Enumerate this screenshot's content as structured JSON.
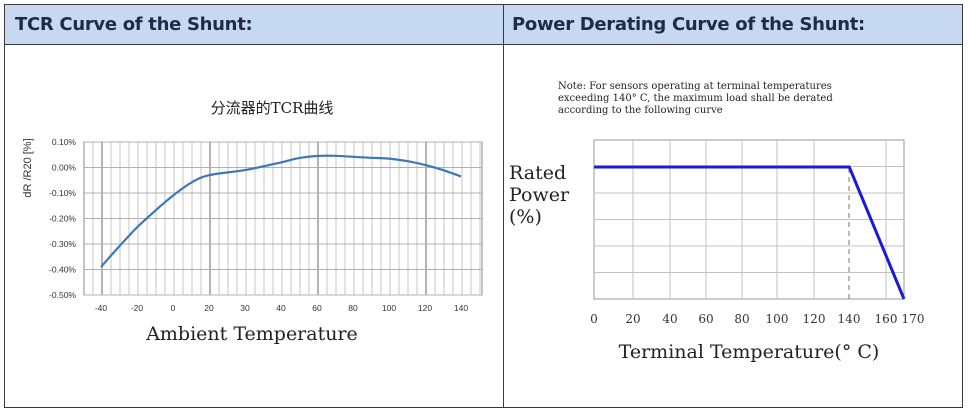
{
  "headers": {
    "left": "TCR Curve of  the Shunt:",
    "right": "Power Derating Curve of the Shunt:"
  },
  "chart_data": [
    {
      "type": "line",
      "title": "分流器的TCR曲线",
      "xlabel": "Ambient  Temperature",
      "ylabel": "dR /R20 [%]",
      "x_ticks": [
        "-40",
        "-20",
        "0",
        "20",
        "30",
        "40",
        "60",
        "80",
        "100",
        "120",
        "140"
      ],
      "y_ticks": [
        "0.10%",
        "0.00%",
        "-0.10%",
        "-0.20%",
        "-0.30%",
        "-0.40%",
        "-0.50%"
      ],
      "ylim": [
        -0.5,
        0.1
      ],
      "grid": true,
      "color": "#3c78b4",
      "series": [
        {
          "x": [
            -40,
            -30,
            -20,
            -10,
            0,
            10,
            20,
            30,
            40,
            50,
            60,
            70,
            80,
            90,
            100,
            110,
            120,
            130,
            140
          ],
          "y": [
            -0.39,
            -0.31,
            -0.235,
            -0.17,
            -0.11,
            -0.06,
            -0.03,
            -0.01,
            0.02,
            0.037,
            0.045,
            0.046,
            0.042,
            0.038,
            0.035,
            0.025,
            0.01,
            -0.01,
            -0.035
          ]
        }
      ]
    },
    {
      "type": "line",
      "title": "",
      "note": [
        "Note: For sensors operating at terminal temperatures",
        "exceeding 140° C, the maximum load shall be derated",
        "according to the following curve"
      ],
      "xlabel": "Terminal Temperature(° C)",
      "ylabel": [
        "Rated",
        "Power",
        "(%)"
      ],
      "x_ticks": [
        "0",
        "20",
        "40",
        "60",
        "80",
        "100",
        "120",
        "140",
        "160",
        "170"
      ],
      "xlim": [
        0,
        170
      ],
      "ylim": [
        0,
        100
      ],
      "grid": true,
      "color": "#1a1ad6",
      "series": [
        {
          "x": [
            0,
            140,
            170
          ],
          "y": [
            100,
            100,
            0
          ]
        }
      ]
    }
  ]
}
